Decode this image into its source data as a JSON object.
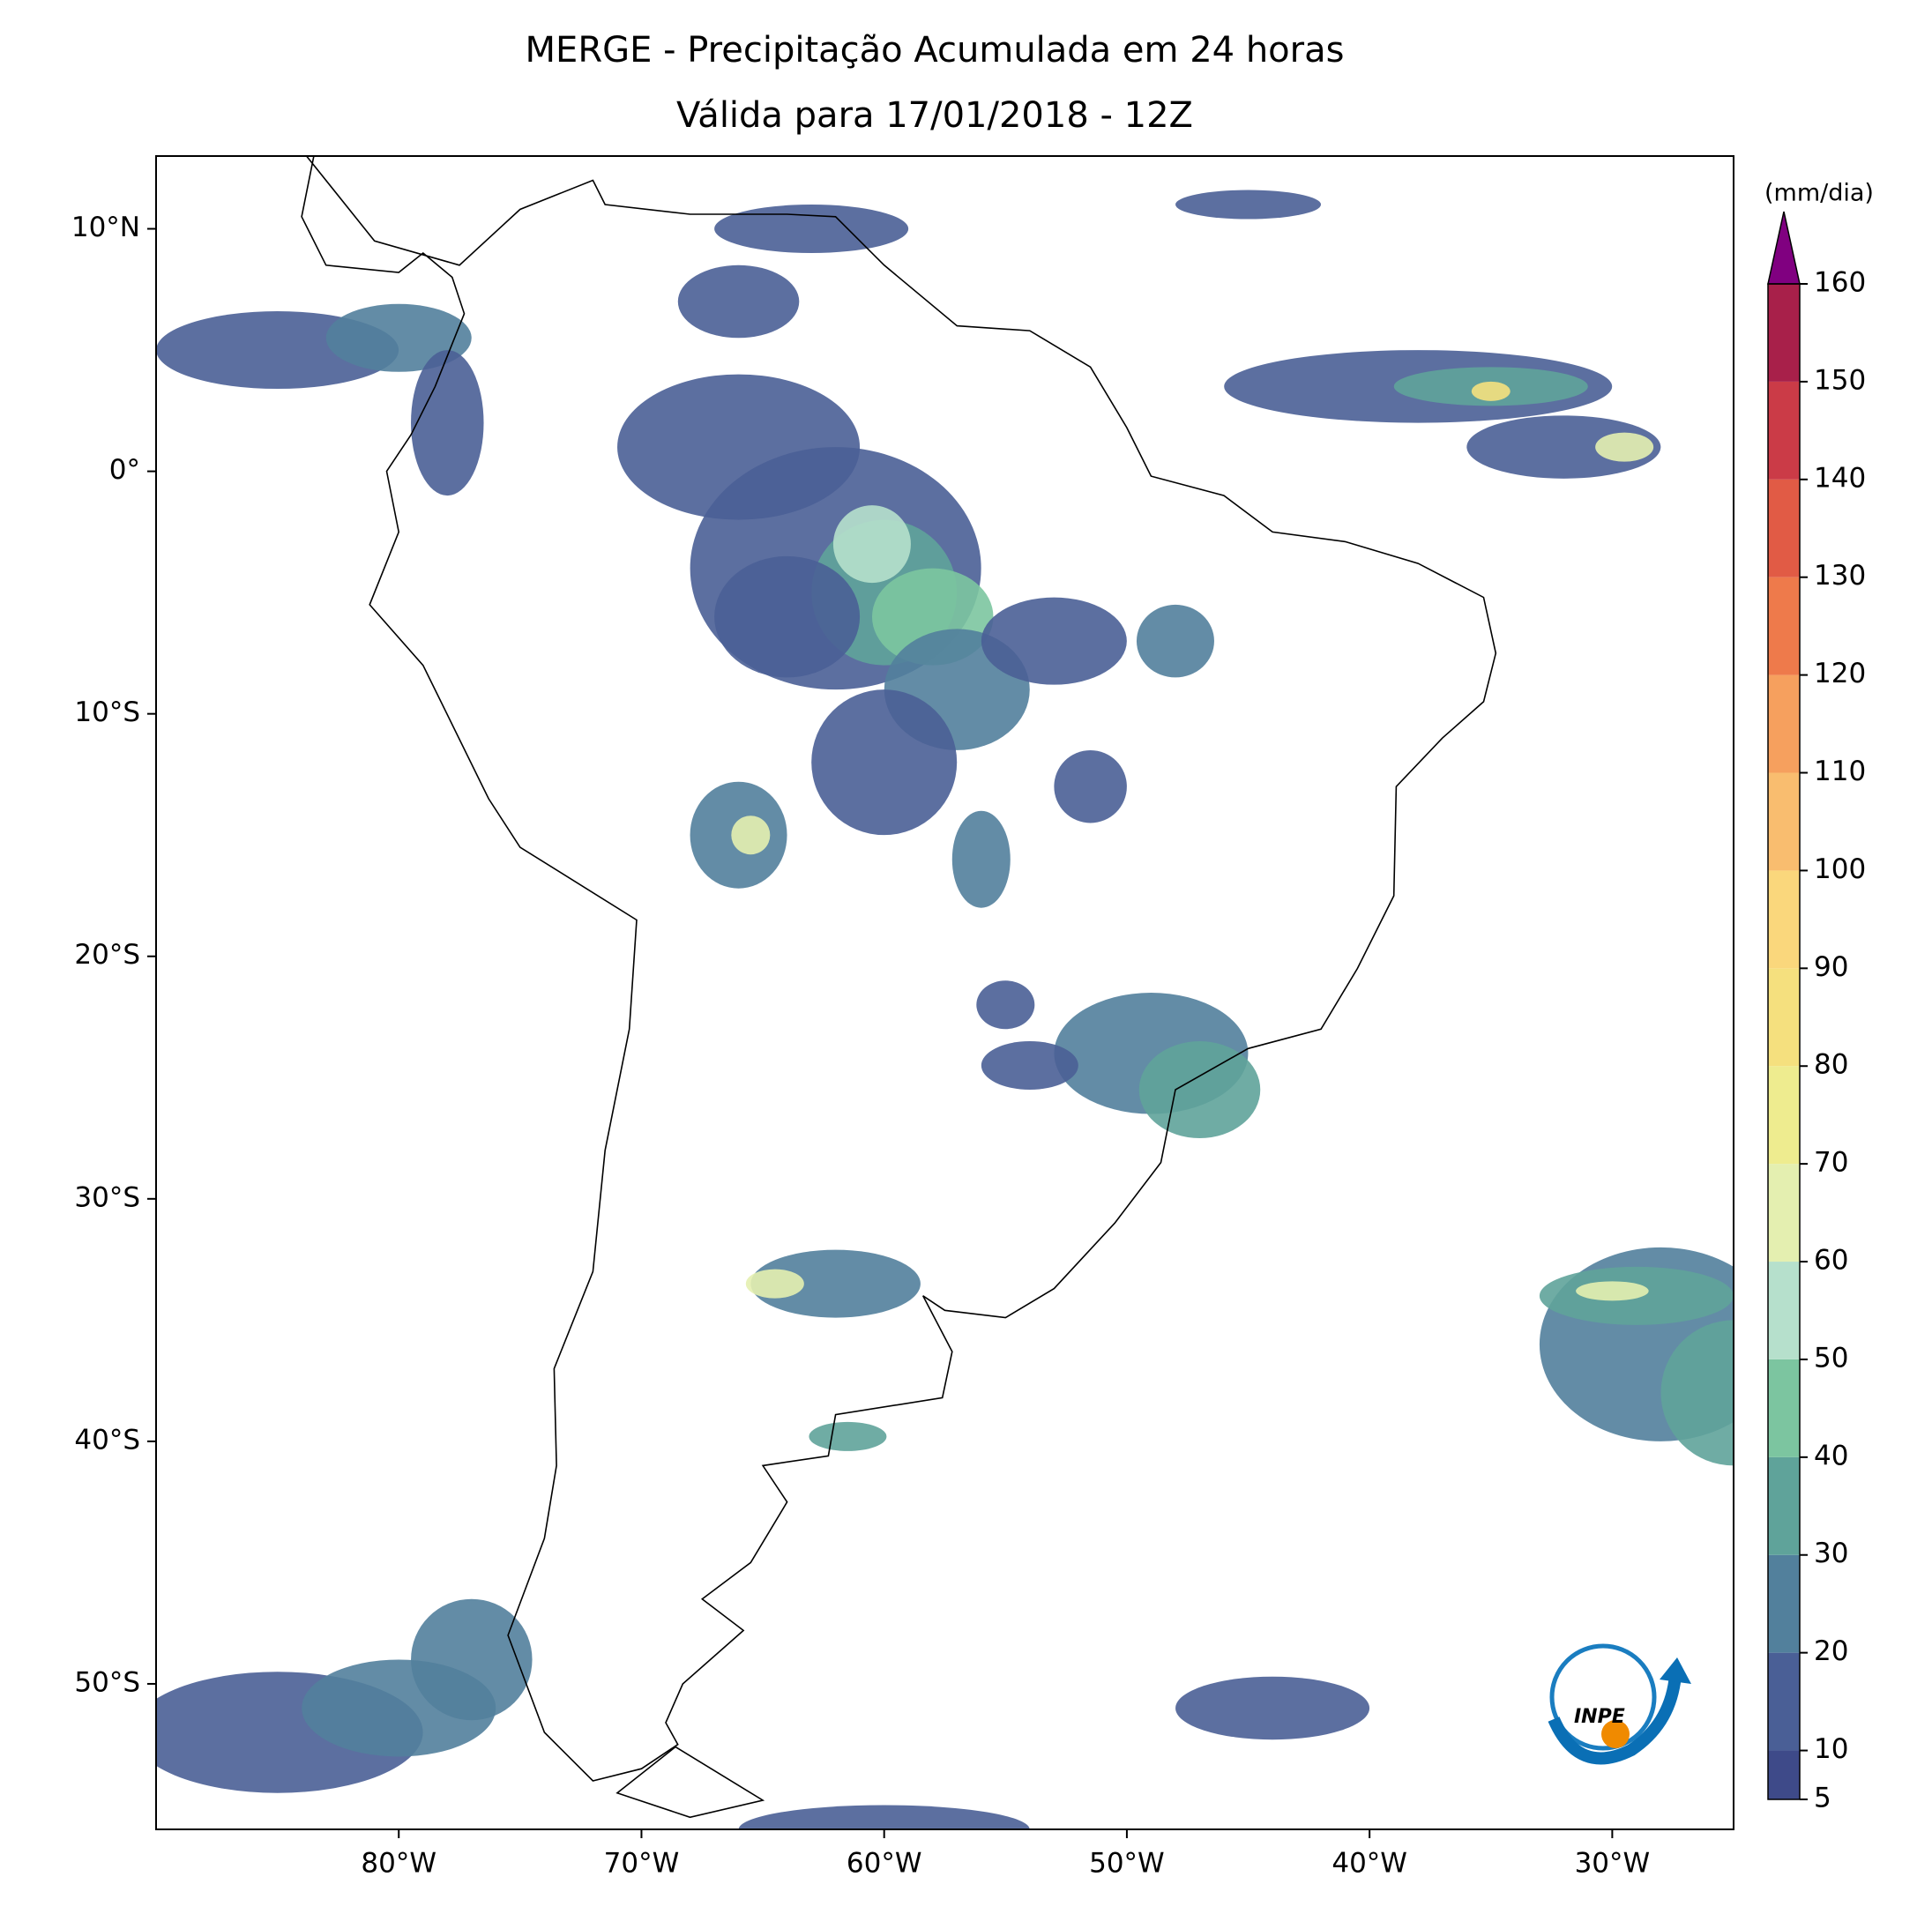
{
  "title": "MERGE - Precipitação Acumulada em 24 horas",
  "subtitle": "Válida para 17/01/2018 - 12Z",
  "map": {
    "xlim": [
      -90,
      -25
    ],
    "ylim": [
      -56,
      13
    ],
    "xticks": [
      {
        "value": -80,
        "label": "80°W"
      },
      {
        "value": -70,
        "label": "70°W"
      },
      {
        "value": -60,
        "label": "60°W"
      },
      {
        "value": -50,
        "label": "50°W"
      },
      {
        "value": -40,
        "label": "40°W"
      },
      {
        "value": -30,
        "label": "30°W"
      }
    ],
    "yticks": [
      {
        "value": 10,
        "label": "10°N"
      },
      {
        "value": 0,
        "label": "0°"
      },
      {
        "value": -10,
        "label": "10°S"
      },
      {
        "value": -20,
        "label": "20°S"
      },
      {
        "value": -30,
        "label": "30°S"
      },
      {
        "value": -40,
        "label": "40°S"
      },
      {
        "value": -50,
        "label": "50°S"
      }
    ]
  },
  "colorbar": {
    "label": "(mm/dia)",
    "ticks": [
      5,
      10,
      20,
      30,
      40,
      50,
      60,
      70,
      80,
      90,
      100,
      110,
      120,
      130,
      140,
      150,
      160
    ],
    "colors": [
      "#3e4a89",
      "#4a5f96",
      "#52809c",
      "#5fa39a",
      "#7cc5a0",
      "#b6e0cc",
      "#e4efb0",
      "#eeec8f",
      "#f5e07e",
      "#fad77c",
      "#f9bd6f",
      "#f6a05e",
      "#ee7a4b",
      "#e15b45",
      "#cb3b47",
      "#a8204a"
    ],
    "extend_color": "#800080"
  },
  "logo": "INPE"
}
